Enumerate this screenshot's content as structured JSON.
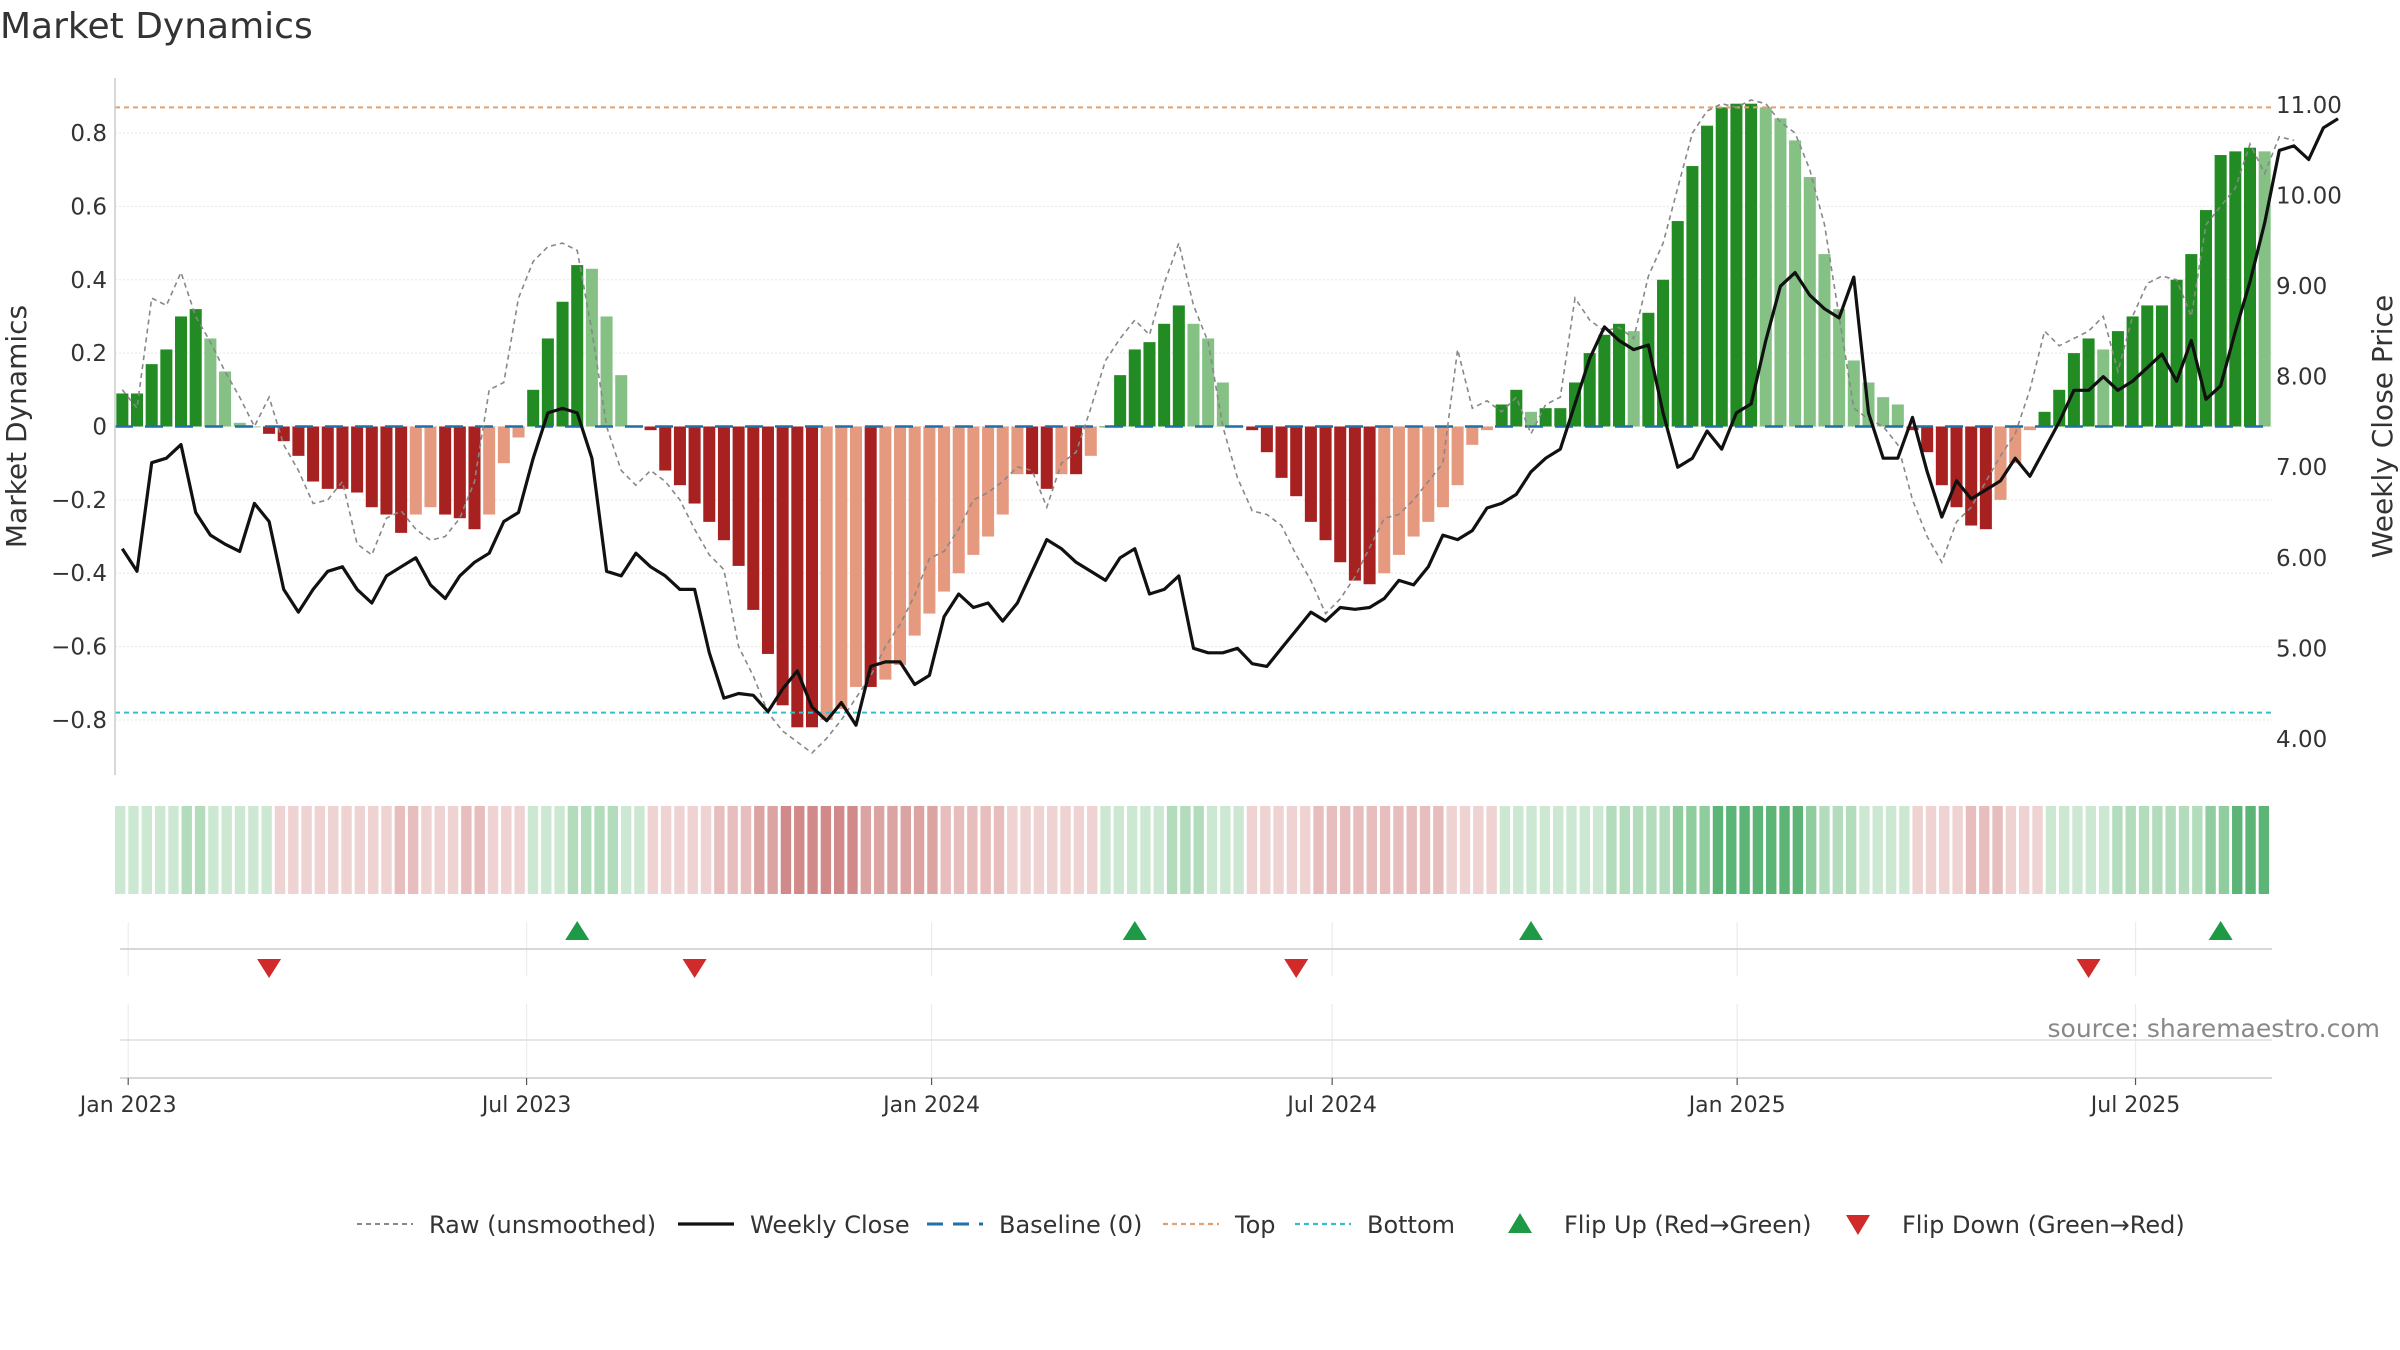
{
  "chart_data": {
    "type": "bar",
    "title": "Market Dynamics",
    "ylabel": "Market Dynamics",
    "y2label": "Weekly Close Price",
    "ylim": [
      -0.95,
      0.95
    ],
    "y2lim": [
      3.6,
      11.3
    ],
    "yticks": [
      -0.8,
      -0.6,
      -0.4,
      -0.2,
      0,
      0.2,
      0.4,
      0.6,
      0.8
    ],
    "ytick_labels": [
      "−0.8",
      "−0.6",
      "−0.4",
      "−0.2",
      "0",
      "0.2",
      "0.4",
      "0.6",
      "0.8"
    ],
    "y2ticks": [
      4,
      5,
      6,
      7,
      8,
      9,
      10,
      11
    ],
    "y2tick_labels": [
      "4.00",
      "5.00",
      "6.00",
      "7.00",
      "8.00",
      "9.00",
      "10.00",
      "11.00"
    ],
    "x_start": "2022-12-26",
    "x_end": "2025-09-01",
    "xticks": [
      "2023-01-01",
      "2023-07-01",
      "2024-01-01",
      "2024-07-01",
      "2025-01-01",
      "2025-07-01"
    ],
    "xtick_labels": [
      "Jan 2023",
      "Jul 2023",
      "Jan 2024",
      "Jul 2024",
      "Jan 2025",
      "Jul 2025"
    ],
    "top_level": 0.87,
    "bottom_level": -0.78,
    "baseline": 0,
    "grid": true,
    "legend_position": "bottom",
    "source": "source: sharemaestro.com",
    "colors": {
      "green_dark": "#238b23",
      "green_light": "#85c185",
      "red_dark": "#a82121",
      "red_light": "#e59a80",
      "close": "#111111",
      "raw": "#888888",
      "baseline": "#1f6fa8",
      "top": "#e0a070",
      "bottom": "#30c0cc",
      "flip_up": "#1e9a46",
      "flip_down": "#d12a2a"
    },
    "smoothed": [
      0.09,
      0.09,
      0.17,
      0.21,
      0.3,
      0.32,
      0.24,
      0.15,
      0.01,
      0,
      -0.02,
      -0.04,
      -0.08,
      -0.15,
      -0.17,
      -0.17,
      -0.18,
      -0.22,
      -0.24,
      -0.29,
      -0.24,
      -0.22,
      -0.24,
      -0.25,
      -0.28,
      -0.24,
      -0.1,
      -0.03,
      0.1,
      0.24,
      0.34,
      0.44,
      0.43,
      0.3,
      0.14,
      0,
      -0.01,
      -0.12,
      -0.16,
      -0.21,
      -0.26,
      -0.31,
      -0.38,
      -0.5,
      -0.62,
      -0.76,
      -0.82,
      -0.82,
      -0.8,
      -0.77,
      -0.71,
      -0.71,
      -0.69,
      -0.65,
      -0.57,
      -0.51,
      -0.45,
      -0.4,
      -0.35,
      -0.3,
      -0.24,
      -0.13,
      -0.13,
      -0.17,
      -0.13,
      -0.13,
      -0.08,
      0,
      0.14,
      0.21,
      0.23,
      0.28,
      0.33,
      0.28,
      0.24,
      0.12,
      0,
      -0.01,
      -0.07,
      -0.14,
      -0.19,
      -0.26,
      -0.31,
      -0.37,
      -0.42,
      -0.43,
      -0.4,
      -0.35,
      -0.3,
      -0.26,
      -0.22,
      -0.16,
      -0.05,
      -0.01,
      0.06,
      0.1,
      0.04,
      0.05,
      0.05,
      0.12,
      0.2,
      0.25,
      0.28,
      0.26,
      0.31,
      0.4,
      0.56,
      0.71,
      0.82,
      0.87,
      0.88,
      0.88,
      0.87,
      0.84,
      0.78,
      0.68,
      0.47,
      0.32,
      0.18,
      0.12,
      0.08,
      0.06,
      -0.01,
      -0.07,
      -0.16,
      -0.22,
      -0.27,
      -0.28,
      -0.2,
      -0.1,
      -0.01,
      0.04,
      0.1,
      0.2,
      0.24,
      0.21,
      0.26,
      0.3,
      0.33,
      0.33,
      0.4,
      0.47,
      0.59,
      0.74,
      0.75,
      0.76,
      0.75
    ],
    "raw": [
      0.1,
      0.05,
      0.35,
      0.33,
      0.42,
      0.3,
      0.23,
      0.15,
      0.08,
      0.0,
      0.08,
      -0.05,
      -0.12,
      -0.21,
      -0.2,
      -0.15,
      -0.32,
      -0.35,
      -0.25,
      -0.23,
      -0.28,
      -0.31,
      -0.3,
      -0.25,
      -0.15,
      0.1,
      0.12,
      0.35,
      0.45,
      0.49,
      0.5,
      0.48,
      0.26,
      0.0,
      -0.12,
      -0.16,
      -0.12,
      -0.15,
      -0.2,
      -0.28,
      -0.35,
      -0.39,
      -0.6,
      -0.68,
      -0.78,
      -0.83,
      -0.86,
      -0.89,
      -0.85,
      -0.8,
      -0.74,
      -0.68,
      -0.6,
      -0.54,
      -0.46,
      -0.36,
      -0.34,
      -0.28,
      -0.2,
      -0.18,
      -0.15,
      -0.11,
      -0.12,
      -0.22,
      -0.1,
      -0.07,
      0.05,
      0.18,
      0.24,
      0.29,
      0.25,
      0.39,
      0.5,
      0.33,
      0.23,
      0.0,
      -0.14,
      -0.23,
      -0.24,
      -0.27,
      -0.35,
      -0.42,
      -0.51,
      -0.47,
      -0.41,
      -0.33,
      -0.25,
      -0.24,
      -0.2,
      -0.15,
      -0.1,
      0.21,
      0.05,
      0.07,
      0.04,
      0.08,
      -0.02,
      0.06,
      0.08,
      0.35,
      0.29,
      0.26,
      0.27,
      0.24,
      0.41,
      0.5,
      0.65,
      0.8,
      0.86,
      0.88,
      0.87,
      0.89,
      0.88,
      0.83,
      0.8,
      0.7,
      0.55,
      0.3,
      0.05,
      0.02,
      0.0,
      -0.05,
      -0.2,
      -0.3,
      -0.37,
      -0.26,
      -0.22,
      -0.15,
      -0.08,
      -0.02,
      0.1,
      0.26,
      0.22,
      0.24,
      0.26,
      0.3,
      0.15,
      0.3,
      0.39,
      0.41,
      0.4,
      0.3,
      0.55,
      0.6,
      0.65,
      0.77,
      0.69,
      0.79,
      0.78
    ],
    "close": [
      6.1,
      5.85,
      7.05,
      7.1,
      7.25,
      6.5,
      6.25,
      6.15,
      6.07,
      6.6,
      6.4,
      5.65,
      5.4,
      5.65,
      5.85,
      5.9,
      5.65,
      5.5,
      5.8,
      5.9,
      6.0,
      5.7,
      5.55,
      5.8,
      5.95,
      6.05,
      6.4,
      6.5,
      7.1,
      7.6,
      7.65,
      7.6,
      7.1,
      5.85,
      5.8,
      6.05,
      5.9,
      5.8,
      5.65,
      5.65,
      4.95,
      4.45,
      4.5,
      4.48,
      4.3,
      4.55,
      4.75,
      4.35,
      4.2,
      4.4,
      4.15,
      4.8,
      4.85,
      4.85,
      4.6,
      4.7,
      5.35,
      5.6,
      5.45,
      5.5,
      5.3,
      5.5,
      5.85,
      6.2,
      6.1,
      5.95,
      5.85,
      5.75,
      6.0,
      6.1,
      5.6,
      5.65,
      5.8,
      5.0,
      4.95,
      4.95,
      5.0,
      4.83,
      4.8,
      5.0,
      5.2,
      5.4,
      5.3,
      5.45,
      5.43,
      5.45,
      5.55,
      5.75,
      5.7,
      5.9,
      6.25,
      6.2,
      6.3,
      6.55,
      6.6,
      6.7,
      6.95,
      7.1,
      7.2,
      7.7,
      8.2,
      8.55,
      8.4,
      8.3,
      8.35,
      7.6,
      7.0,
      7.1,
      7.4,
      7.2,
      7.6,
      7.7,
      8.4,
      9.0,
      9.15,
      8.9,
      8.75,
      8.65,
      9.1,
      7.6,
      7.1,
      7.1,
      7.55,
      6.95,
      6.45,
      6.85,
      6.65,
      6.75,
      6.85,
      7.1,
      6.9,
      7.2,
      7.5,
      7.85,
      7.85,
      8.0,
      7.85,
      7.95,
      8.1,
      8.25,
      7.95,
      8.4,
      7.75,
      7.9,
      8.5,
      9.05,
      9.7,
      10.5,
      10.55,
      10.4,
      10.75,
      10.85
    ],
    "strip": {
      "n": 162,
      "steps": [
        0,
        0.25,
        0.5,
        0.75,
        1
      ],
      "green": [
        "#cde8d2",
        "#b3dcbd",
        "#8fcd9f",
        "#5cb477",
        "#37a257"
      ],
      "red": [
        "#efd2d2",
        "#e7bdbd",
        "#dca3a3",
        "#d28989",
        "#c56a6a"
      ]
    },
    "flips": {
      "up": [
        31,
        69,
        96,
        143
      ],
      "down": [
        10,
        39,
        80,
        134
      ]
    },
    "legend": [
      {
        "label": "Raw (unsmoothed)",
        "key": "raw"
      },
      {
        "label": "Weekly Close",
        "key": "close"
      },
      {
        "label": "Baseline (0)",
        "key": "baseline"
      },
      {
        "label": "Top",
        "key": "top"
      },
      {
        "label": "Bottom",
        "key": "bottom"
      },
      {
        "label": "Flip Up (Red→Green)",
        "key": "flip_up"
      },
      {
        "label": "Flip Down (Green→Red)",
        "key": "flip_down"
      }
    ]
  }
}
